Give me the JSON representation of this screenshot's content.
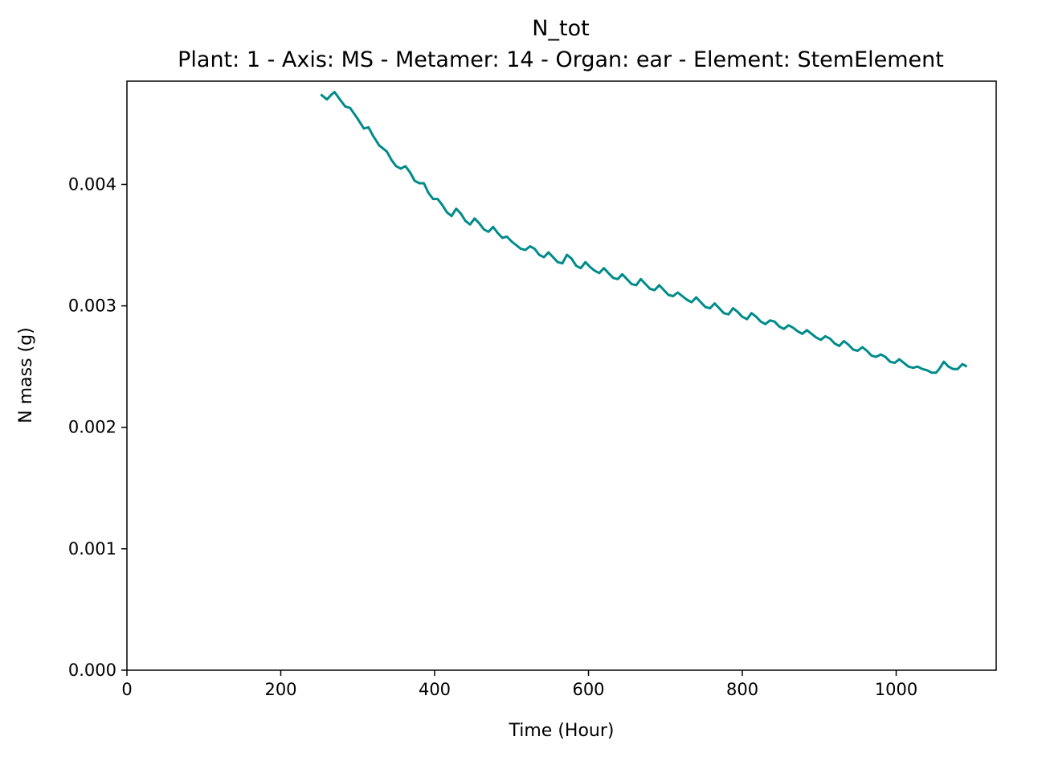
{
  "chart_data": {
    "type": "line",
    "title": "N_tot",
    "subtitle": "Plant: 1 - Axis: MS - Metamer: 14 - Organ: ear - Element: StemElement",
    "xlabel": "Time (Hour)",
    "ylabel": "N mass (g)",
    "xlim": [
      0,
      1130
    ],
    "ylim": [
      0,
      0.00485
    ],
    "xticks": [
      0,
      200,
      400,
      600,
      800,
      1000
    ],
    "xtick_labels": [
      "0",
      "200",
      "400",
      "600",
      "800",
      "1000"
    ],
    "yticks": [
      0,
      0.001,
      0.002,
      0.003,
      0.004
    ],
    "ytick_labels": [
      "0.000",
      "0.001",
      "0.002",
      "0.003",
      "0.004"
    ],
    "grid": false,
    "legend": "none",
    "series": [
      {
        "color": "#008b8b",
        "x": [
          252,
          260,
          266,
          270,
          278,
          284,
          290,
          300,
          308,
          314,
          320,
          328,
          334,
          338,
          344,
          350,
          356,
          362,
          368,
          374,
          380,
          386,
          392,
          398,
          404,
          410,
          416,
          422,
          428,
          434,
          440,
          446,
          452,
          458,
          464,
          470,
          476,
          482,
          488,
          494,
          500,
          506,
          512,
          518,
          524,
          530,
          536,
          542,
          548,
          554,
          560,
          566,
          572,
          578,
          584,
          590,
          596,
          602,
          608,
          614,
          620,
          626,
          632,
          638,
          644,
          650,
          656,
          662,
          668,
          674,
          680,
          686,
          692,
          698,
          704,
          710,
          716,
          722,
          728,
          734,
          740,
          746,
          752,
          758,
          764,
          770,
          776,
          782,
          788,
          794,
          800,
          806,
          812,
          818,
          824,
          830,
          836,
          842,
          848,
          854,
          860,
          866,
          872,
          878,
          884,
          890,
          896,
          902,
          908,
          914,
          920,
          926,
          932,
          938,
          944,
          950,
          956,
          962,
          968,
          974,
          980,
          986,
          992,
          998,
          1004,
          1010,
          1016,
          1022,
          1028,
          1034,
          1040,
          1046,
          1052,
          1056,
          1062,
          1068,
          1074,
          1080,
          1086,
          1092
        ],
        "values": [
          0.00474,
          0.0047,
          0.00474,
          0.00476,
          0.00469,
          0.00464,
          0.00463,
          0.00454,
          0.00446,
          0.00447,
          0.0044,
          0.00432,
          0.00429,
          0.00427,
          0.0042,
          0.00415,
          0.00413,
          0.00415,
          0.0041,
          0.00403,
          0.00401,
          0.00401,
          0.00393,
          0.00388,
          0.00388,
          0.00383,
          0.00377,
          0.00374,
          0.0038,
          0.00376,
          0.0037,
          0.00367,
          0.00372,
          0.00368,
          0.00363,
          0.00361,
          0.00365,
          0.0036,
          0.00356,
          0.00357,
          0.00353,
          0.0035,
          0.00347,
          0.00346,
          0.00349,
          0.00347,
          0.00342,
          0.0034,
          0.00344,
          0.0034,
          0.00336,
          0.00335,
          0.00342,
          0.00339,
          0.00333,
          0.00331,
          0.00336,
          0.00332,
          0.00329,
          0.00327,
          0.00331,
          0.00327,
          0.00323,
          0.00322,
          0.00326,
          0.00322,
          0.00318,
          0.00317,
          0.00322,
          0.00318,
          0.00314,
          0.00313,
          0.00317,
          0.00313,
          0.00309,
          0.00308,
          0.00311,
          0.00308,
          0.00305,
          0.00303,
          0.00307,
          0.00303,
          0.00299,
          0.00298,
          0.00302,
          0.00298,
          0.00294,
          0.00293,
          0.00298,
          0.00295,
          0.00291,
          0.00289,
          0.00294,
          0.00291,
          0.00287,
          0.00285,
          0.00288,
          0.00287,
          0.00283,
          0.00281,
          0.00284,
          0.00282,
          0.00279,
          0.00277,
          0.0028,
          0.00277,
          0.00274,
          0.00272,
          0.00275,
          0.00273,
          0.00269,
          0.00267,
          0.00271,
          0.00268,
          0.00264,
          0.00263,
          0.00266,
          0.00263,
          0.00259,
          0.00258,
          0.0026,
          0.00258,
          0.00254,
          0.00253,
          0.00256,
          0.00253,
          0.0025,
          0.00249,
          0.0025,
          0.00248,
          0.00247,
          0.00245,
          0.00245,
          0.00248,
          0.00254,
          0.0025,
          0.00248,
          0.00248,
          0.00252,
          0.0025
        ]
      }
    ]
  }
}
